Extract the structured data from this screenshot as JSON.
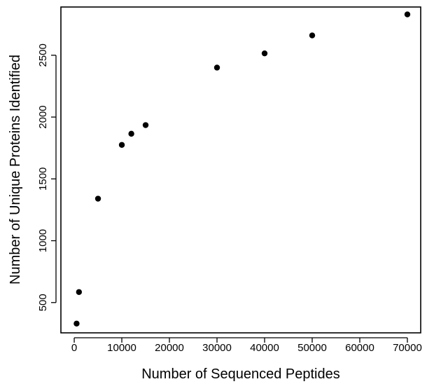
{
  "chart_data": {
    "type": "scatter",
    "title": "",
    "xlabel": "Number of Sequenced Peptides",
    "ylabel": "Number of Unique Proteins Identified",
    "xlim": [
      -2800,
      72800
    ],
    "ylim": [
      255,
      2890
    ],
    "xticks": [
      0,
      10000,
      20000,
      30000,
      40000,
      50000,
      60000,
      70000
    ],
    "xtick_labels": [
      "0",
      "10000",
      "20000",
      "30000",
      "40000",
      "50000",
      "60000",
      "70000"
    ],
    "yticks": [
      500,
      1000,
      1500,
      2000,
      2500
    ],
    "ytick_labels": [
      "500",
      "1000",
      "1500",
      "2000",
      "2500"
    ],
    "grid": false,
    "legend": "none",
    "point_color": "#000000",
    "x": [
      500,
      1000,
      5000,
      10000,
      12000,
      15000,
      30000,
      40000,
      50000,
      70000
    ],
    "y": [
      330,
      585,
      1340,
      1775,
      1865,
      1935,
      2400,
      2515,
      2660,
      2830
    ]
  }
}
